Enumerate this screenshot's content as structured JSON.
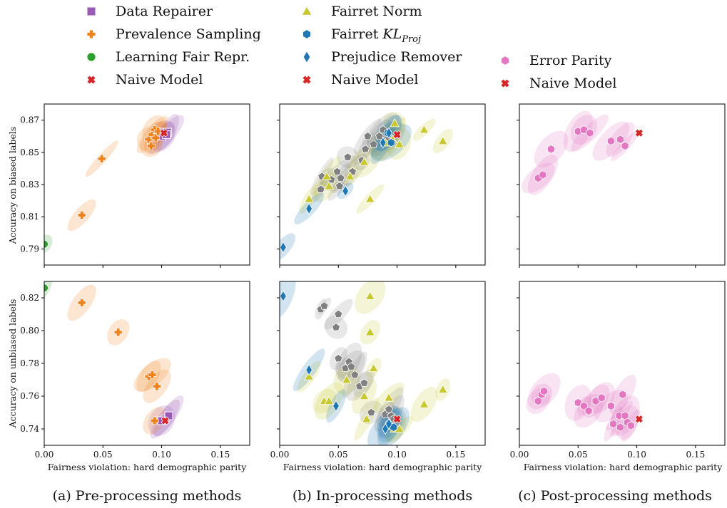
{
  "legends": [
    {
      "entries": [
        {
          "label": "Data Repairer",
          "marker": "square",
          "color": "#9b59b6"
        },
        {
          "label": "Prevalence Sampling",
          "marker": "plus",
          "color": "#f0821e"
        },
        {
          "label": "Learning Fair Repr.",
          "marker": "circle",
          "color": "#2ca02c"
        },
        {
          "label": "Naive Model",
          "marker": "x",
          "color": "#d62728"
        }
      ]
    },
    {
      "entries": [
        {
          "label": "Fairret Norm",
          "marker": "triangle",
          "color": "#c8c832"
        },
        {
          "label": "Fairret KL",
          "sub": "Proj",
          "marker": "hexagon",
          "color": "#1f77b4"
        },
        {
          "label": "Prejudice Remover",
          "marker": "diamond",
          "color": "#1f77b4"
        },
        {
          "label": "Naive Model",
          "marker": "x",
          "color": "#d62728"
        }
      ]
    },
    {
      "entries": [
        {
          "label": "Error Parity",
          "marker": "hexagon",
          "color": "#e377c2"
        },
        {
          "label": "Naive Model",
          "marker": "x",
          "color": "#d62728"
        }
      ]
    }
  ],
  "captions": [
    "(a) Pre-processing methods",
    "(b) In-processing methods",
    "(c) Post-processing methods"
  ],
  "xlabel": "Fairness violation: hard demographic parity",
  "ylabels": [
    "Accuracy on biased labels",
    "Accuracy on unbiased labels"
  ],
  "colors": {
    "data_repairer": "#9b59b6",
    "prevalence": "#f0821e",
    "lfr": "#2ca02c",
    "naive": "#d62728",
    "fairret_norm": "#c8c832",
    "fairret_kl": "#1f77b4",
    "prejudice": "#1f77b4",
    "error_parity": "#e377c2",
    "gray": "#808080"
  },
  "chart_data": [
    {
      "type": "scatter",
      "panel": "a-top",
      "xlim": [
        0,
        0.175
      ],
      "ylim": [
        0.78,
        0.88
      ],
      "xticks": [
        "0.00",
        "0.05",
        "0.10",
        "0.15"
      ],
      "yticks": [
        "0.79",
        "0.81",
        "0.83",
        "0.85",
        "0.87"
      ],
      "ytick_values": [
        0.79,
        0.81,
        0.83,
        0.85,
        0.87
      ],
      "series": [
        {
          "name": "Data Repairer",
          "marker": "square",
          "points": [
            [
              0.102,
              0.8625
            ],
            [
              0.105,
              0.8625
            ],
            [
              0.1,
              0.86
            ],
            [
              0.104,
              0.861
            ]
          ]
        },
        {
          "name": "Prevalence Sampling",
          "marker": "plus",
          "points": [
            [
              0.032,
              0.811
            ],
            [
              0.049,
              0.846
            ],
            [
              0.089,
              0.858
            ],
            [
              0.092,
              0.861
            ],
            [
              0.094,
              0.864
            ],
            [
              0.091,
              0.854
            ],
            [
              0.095,
              0.859
            ],
            [
              0.097,
              0.863
            ]
          ]
        },
        {
          "name": "Learning Fair Repr.",
          "marker": "circle",
          "points": [
            [
              0.0,
              0.793
            ]
          ]
        },
        {
          "name": "Naive Model",
          "marker": "x",
          "points": [
            [
              0.102,
              0.862
            ]
          ]
        }
      ]
    },
    {
      "type": "scatter",
      "panel": "b-top",
      "xlim": [
        0,
        0.175
      ],
      "ylim": [
        0.78,
        0.88
      ],
      "xticks": [
        "0.00",
        "0.05",
        "0.10",
        "0.15"
      ],
      "yticks": [
        "0.79",
        "0.81",
        "0.83",
        "0.85",
        "0.87"
      ],
      "ytick_values": [
        0.79,
        0.81,
        0.83,
        0.85,
        0.87
      ],
      "series": [
        {
          "name": "Fairret Norm",
          "marker": "triangle",
          "points": [
            [
              0.025,
              0.821
            ],
            [
              0.04,
              0.835
            ],
            [
              0.042,
              0.829
            ],
            [
              0.06,
              0.835
            ],
            [
              0.072,
              0.844
            ],
            [
              0.077,
              0.821
            ],
            [
              0.09,
              0.856
            ],
            [
              0.096,
              0.858
            ],
            [
              0.098,
              0.868
            ],
            [
              0.102,
              0.855
            ],
            [
              0.123,
              0.864
            ],
            [
              0.139,
              0.857
            ]
          ]
        },
        {
          "name": "Fairret KL",
          "marker": "hexagon",
          "points": [
            [
              0.092,
              0.862
            ],
            [
              0.095,
              0.856
            ]
          ]
        },
        {
          "name": "Prejudice Remover",
          "marker": "diamond",
          "points": [
            [
              0.003,
              0.791
            ],
            [
              0.025,
              0.815
            ],
            [
              0.056,
              0.826
            ],
            [
              0.088,
              0.856
            ],
            [
              0.093,
              0.862
            ]
          ]
        },
        {
          "name": "Naive Model",
          "marker": "x",
          "points": [
            [
              0.1,
              0.861
            ]
          ]
        }
      ],
      "gray_points": [
        [
          0.035,
          0.827
        ],
        [
          0.036,
          0.835
        ],
        [
          0.044,
          0.833
        ],
        [
          0.049,
          0.838
        ],
        [
          0.051,
          0.829
        ],
        [
          0.052,
          0.834
        ],
        [
          0.058,
          0.847
        ],
        [
          0.062,
          0.838
        ],
        [
          0.07,
          0.845
        ],
        [
          0.073,
          0.852
        ],
        [
          0.075,
          0.86
        ],
        [
          0.08,
          0.855
        ],
        [
          0.085,
          0.86
        ],
        [
          0.088,
          0.864
        ],
        [
          0.091,
          0.858
        ]
      ]
    },
    {
      "type": "scatter",
      "panel": "c-top",
      "xlim": [
        0,
        0.175
      ],
      "ylim": [
        0.78,
        0.88
      ],
      "xticks": [
        "0.00",
        "0.05",
        "0.10",
        "0.15"
      ],
      "yticks": [
        "0.79",
        "0.81",
        "0.83",
        "0.85",
        "0.87"
      ],
      "ytick_values": [
        0.79,
        0.81,
        0.83,
        0.85,
        0.87
      ],
      "series": [
        {
          "name": "Error Parity",
          "marker": "hexagon",
          "points": [
            [
              0.016,
              0.834
            ],
            [
              0.02,
              0.836
            ],
            [
              0.027,
              0.852
            ],
            [
              0.05,
              0.863
            ],
            [
              0.055,
              0.864
            ],
            [
              0.06,
              0.862
            ],
            [
              0.078,
              0.857
            ],
            [
              0.086,
              0.858
            ],
            [
              0.09,
              0.854
            ]
          ]
        },
        {
          "name": "Naive Model",
          "marker": "x",
          "points": [
            [
              0.102,
              0.862
            ]
          ]
        }
      ]
    },
    {
      "type": "scatter",
      "panel": "a-bottom",
      "xlim": [
        0,
        0.175
      ],
      "ylim": [
        0.73,
        0.83
      ],
      "xticks": [
        "0.00",
        "0.05",
        "0.10",
        "0.15"
      ],
      "yticks": [
        "0.74",
        "0.76",
        "0.78",
        "0.80",
        "0.82"
      ],
      "ytick_values": [
        0.74,
        0.76,
        0.78,
        0.8,
        0.82
      ],
      "series": [
        {
          "name": "Data Repairer",
          "marker": "square",
          "points": [
            [
              0.103,
              0.746
            ],
            [
              0.106,
              0.748
            ],
            [
              0.1,
              0.745
            ]
          ]
        },
        {
          "name": "Prevalence Sampling",
          "marker": "plus",
          "points": [
            [
              0.032,
              0.817
            ],
            [
              0.063,
              0.799
            ],
            [
              0.089,
              0.772
            ],
            [
              0.092,
              0.773
            ],
            [
              0.096,
              0.766
            ],
            [
              0.094,
              0.745
            ]
          ]
        },
        {
          "name": "Learning Fair Repr.",
          "marker": "circle",
          "points": [
            [
              0.0,
              0.826
            ]
          ]
        },
        {
          "name": "Naive Model",
          "marker": "x",
          "points": [
            [
              0.103,
              0.745
            ]
          ]
        }
      ]
    },
    {
      "type": "scatter",
      "panel": "b-bottom",
      "xlim": [
        0,
        0.175
      ],
      "ylim": [
        0.73,
        0.83
      ],
      "xticks": [
        "0.00",
        "0.05",
        "0.10",
        "0.15"
      ],
      "yticks": [
        "0.74",
        "0.76",
        "0.78",
        "0.80",
        "0.82"
      ],
      "ytick_values": [
        0.74,
        0.76,
        0.78,
        0.8,
        0.82
      ],
      "series": [
        {
          "name": "Fairret Norm",
          "marker": "triangle",
          "points": [
            [
              0.025,
              0.772
            ],
            [
              0.038,
              0.757
            ],
            [
              0.042,
              0.757
            ],
            [
              0.057,
              0.77
            ],
            [
              0.072,
              0.76
            ],
            [
              0.074,
              0.746
            ],
            [
              0.077,
              0.821
            ],
            [
              0.077,
              0.799
            ],
            [
              0.08,
              0.777
            ],
            [
              0.093,
              0.759
            ],
            [
              0.098,
              0.74
            ],
            [
              0.102,
              0.74
            ],
            [
              0.123,
              0.755
            ],
            [
              0.139,
              0.764
            ]
          ]
        },
        {
          "name": "Fairret KL",
          "marker": "hexagon",
          "points": [
            [
              0.093,
              0.743
            ],
            [
              0.097,
              0.741
            ]
          ]
        },
        {
          "name": "Prejudice Remover",
          "marker": "diamond",
          "points": [
            [
              0.003,
              0.821
            ],
            [
              0.025,
              0.776
            ],
            [
              0.048,
              0.754
            ],
            [
              0.09,
              0.74
            ],
            [
              0.093,
              0.743
            ]
          ]
        },
        {
          "name": "Naive Model",
          "marker": "x",
          "points": [
            [
              0.1,
              0.746
            ]
          ]
        }
      ],
      "gray_points": [
        [
          0.035,
          0.813
        ],
        [
          0.038,
          0.815
        ],
        [
          0.048,
          0.802
        ],
        [
          0.05,
          0.81
        ],
        [
          0.05,
          0.783
        ],
        [
          0.056,
          0.777
        ],
        [
          0.059,
          0.781
        ],
        [
          0.061,
          0.778
        ],
        [
          0.064,
          0.773
        ],
        [
          0.068,
          0.766
        ],
        [
          0.072,
          0.768
        ],
        [
          0.078,
          0.75
        ],
        [
          0.09,
          0.749
        ],
        [
          0.093,
          0.752
        ],
        [
          0.095,
          0.748
        ],
        [
          0.097,
          0.746
        ]
      ]
    },
    {
      "type": "scatter",
      "panel": "c-bottom",
      "xlim": [
        0,
        0.175
      ],
      "ylim": [
        0.73,
        0.83
      ],
      "xticks": [
        "0.00",
        "0.05",
        "0.10",
        "0.15"
      ],
      "yticks": [
        "0.74",
        "0.76",
        "0.78",
        "0.80",
        "0.82"
      ],
      "ytick_values": [
        0.74,
        0.76,
        0.78,
        0.8,
        0.82
      ],
      "series": [
        {
          "name": "Error Parity",
          "marker": "hexagon",
          "points": [
            [
              0.016,
              0.757
            ],
            [
              0.019,
              0.761
            ],
            [
              0.021,
              0.763
            ],
            [
              0.05,
              0.756
            ],
            [
              0.055,
              0.754
            ],
            [
              0.059,
              0.751
            ],
            [
              0.065,
              0.757
            ],
            [
              0.07,
              0.759
            ],
            [
              0.078,
              0.754
            ],
            [
              0.08,
              0.743
            ],
            [
              0.085,
              0.748
            ],
            [
              0.086,
              0.741
            ],
            [
              0.088,
              0.761
            ],
            [
              0.09,
              0.748
            ],
            [
              0.092,
              0.744
            ],
            [
              0.095,
              0.742
            ]
          ]
        },
        {
          "name": "Naive Model",
          "marker": "x",
          "points": [
            [
              0.102,
              0.746
            ]
          ]
        }
      ]
    }
  ]
}
